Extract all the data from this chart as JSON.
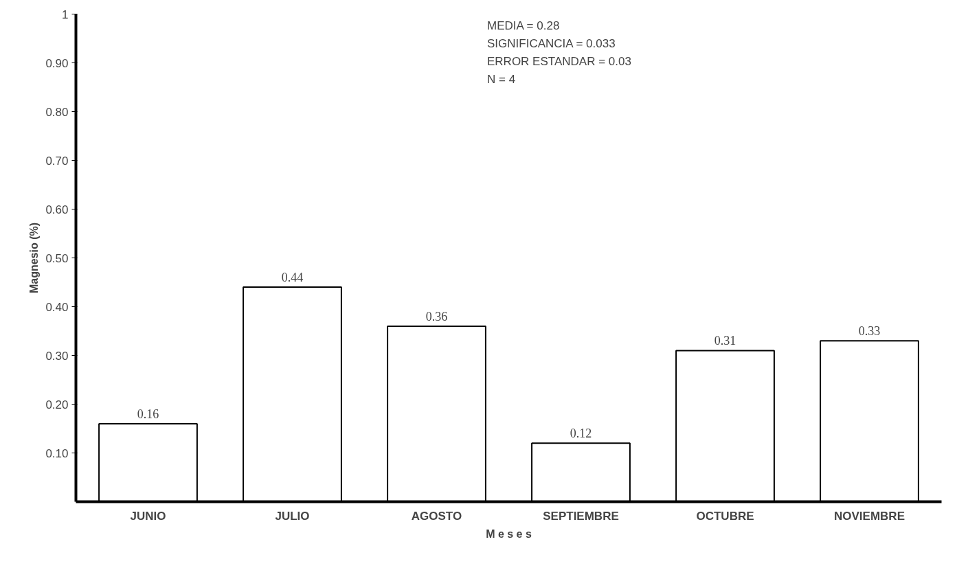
{
  "chart_data": {
    "type": "bar",
    "categories": [
      "JUNIO",
      "JULIO",
      "AGOSTO",
      "SEPTIEMBRE",
      "OCTUBRE",
      "NOVIEMBRE"
    ],
    "values": [
      0.16,
      0.44,
      0.36,
      0.12,
      0.31,
      0.33
    ],
    "color": "#ffffff",
    "xlabel": "M e s e s",
    "ylabel": "Magnesio (%)",
    "ylim": [
      0,
      1
    ],
    "yticks": [
      {
        "value": 0.1,
        "label": "0.10"
      },
      {
        "value": 0.2,
        "label": "0.20"
      },
      {
        "value": 0.3,
        "label": "0.30"
      },
      {
        "value": 0.4,
        "label": "0.40"
      },
      {
        "value": 0.5,
        "label": "0.50"
      },
      {
        "value": 0.6,
        "label": "0.60"
      },
      {
        "value": 0.7,
        "label": "0.70"
      },
      {
        "value": 0.8,
        "label": "0.80"
      },
      {
        "value": 0.9,
        "label": "0.90"
      },
      1
    ],
    "annotations": [
      "MEDIA = 0.28",
      "SIGNIFICANCIA = 0.033",
      "ERROR ESTANDAR = 0.03",
      "N = 4"
    ],
    "data_labels": true,
    "grid": false
  }
}
